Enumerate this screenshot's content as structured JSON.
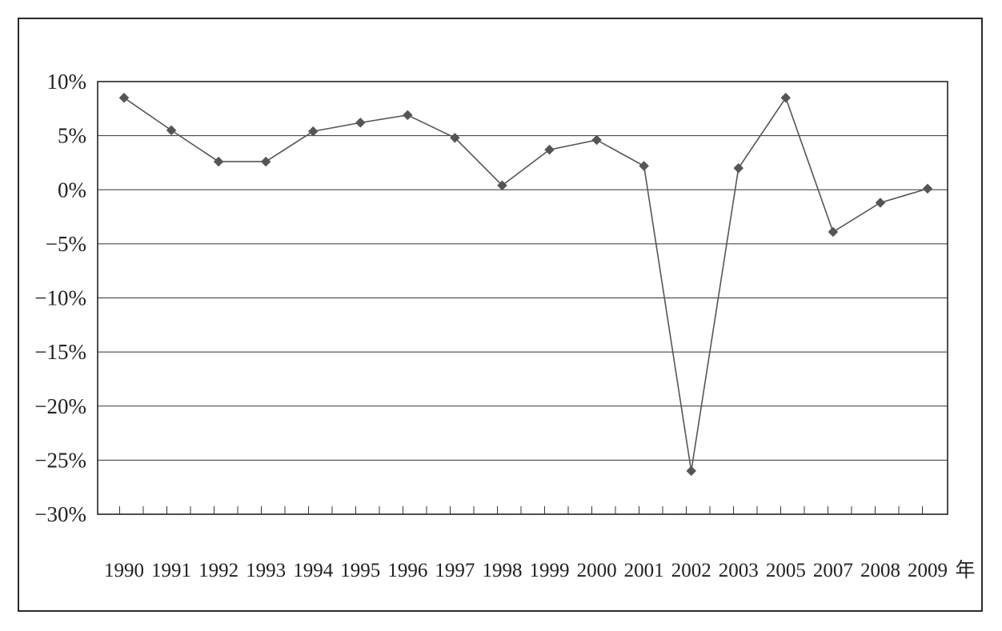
{
  "chart_data": {
    "type": "line",
    "title": "",
    "xlabel": "年",
    "ylabel": "",
    "categories": [
      "1990",
      "1991",
      "1992",
      "1993",
      "1994",
      "1995",
      "1996",
      "1997",
      "1998",
      "1999",
      "2000",
      "2001",
      "2002",
      "2003",
      "2005",
      "2007",
      "2008",
      "2009"
    ],
    "ylim": [
      -30,
      10
    ],
    "ytick_values": [
      10,
      5,
      0,
      -5,
      -10,
      -15,
      -20,
      -25,
      -30
    ],
    "ytick_labels": [
      "10%",
      "5%",
      "0%",
      "−5%",
      "−10%",
      "−15%",
      "−20%",
      "−25%",
      "−30%"
    ],
    "grid": "horizontal",
    "legend": "none",
    "series": [
      {
        "values": [
          8.5,
          5.5,
          2.6,
          2.6,
          5.4,
          6.2,
          6.9,
          4.8,
          0.4,
          3.7,
          4.6,
          2.2,
          -26.0,
          2.0,
          8.5,
          -3.9,
          -1.2,
          0.1
        ],
        "color": "#555555",
        "marker": "diamond"
      }
    ]
  }
}
